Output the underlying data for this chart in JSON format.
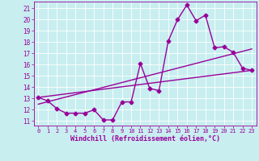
{
  "x": [
    0,
    1,
    2,
    3,
    4,
    5,
    6,
    7,
    8,
    9,
    10,
    11,
    12,
    13,
    14,
    15,
    16,
    17,
    18,
    19,
    20,
    21,
    22,
    23
  ],
  "y_data": [
    13.1,
    12.8,
    12.1,
    11.7,
    11.7,
    11.7,
    12.0,
    11.1,
    11.1,
    12.7,
    12.7,
    16.1,
    13.9,
    13.7,
    18.1,
    20.0,
    21.3,
    19.9,
    20.4,
    17.5,
    17.6,
    17.1,
    15.7,
    15.5
  ],
  "line_color": "#990099",
  "bg_color": "#c8eef0",
  "ylabel_vals": [
    11,
    12,
    13,
    14,
    15,
    16,
    17,
    18,
    19,
    20,
    21
  ],
  "xlabel_vals": [
    0,
    1,
    2,
    3,
    4,
    5,
    6,
    7,
    8,
    9,
    10,
    11,
    12,
    13,
    14,
    15,
    16,
    17,
    18,
    19,
    20,
    21,
    22,
    23
  ],
  "ylim": [
    10.6,
    21.6
  ],
  "xlim": [
    -0.5,
    23.5
  ],
  "xlabel": "Windchill (Refroidissement éolien,°C)",
  "marker": "D",
  "markersize": 2.5,
  "linewidth": 1.0,
  "regression1_start_x": 0,
  "regression1_start_y": 13.1,
  "regression1_end_x": 23,
  "regression1_end_y": 15.5,
  "regression2_start_x": 0,
  "regression2_start_y": 12.5,
  "regression2_end_x": 23,
  "regression2_end_y": 17.4
}
